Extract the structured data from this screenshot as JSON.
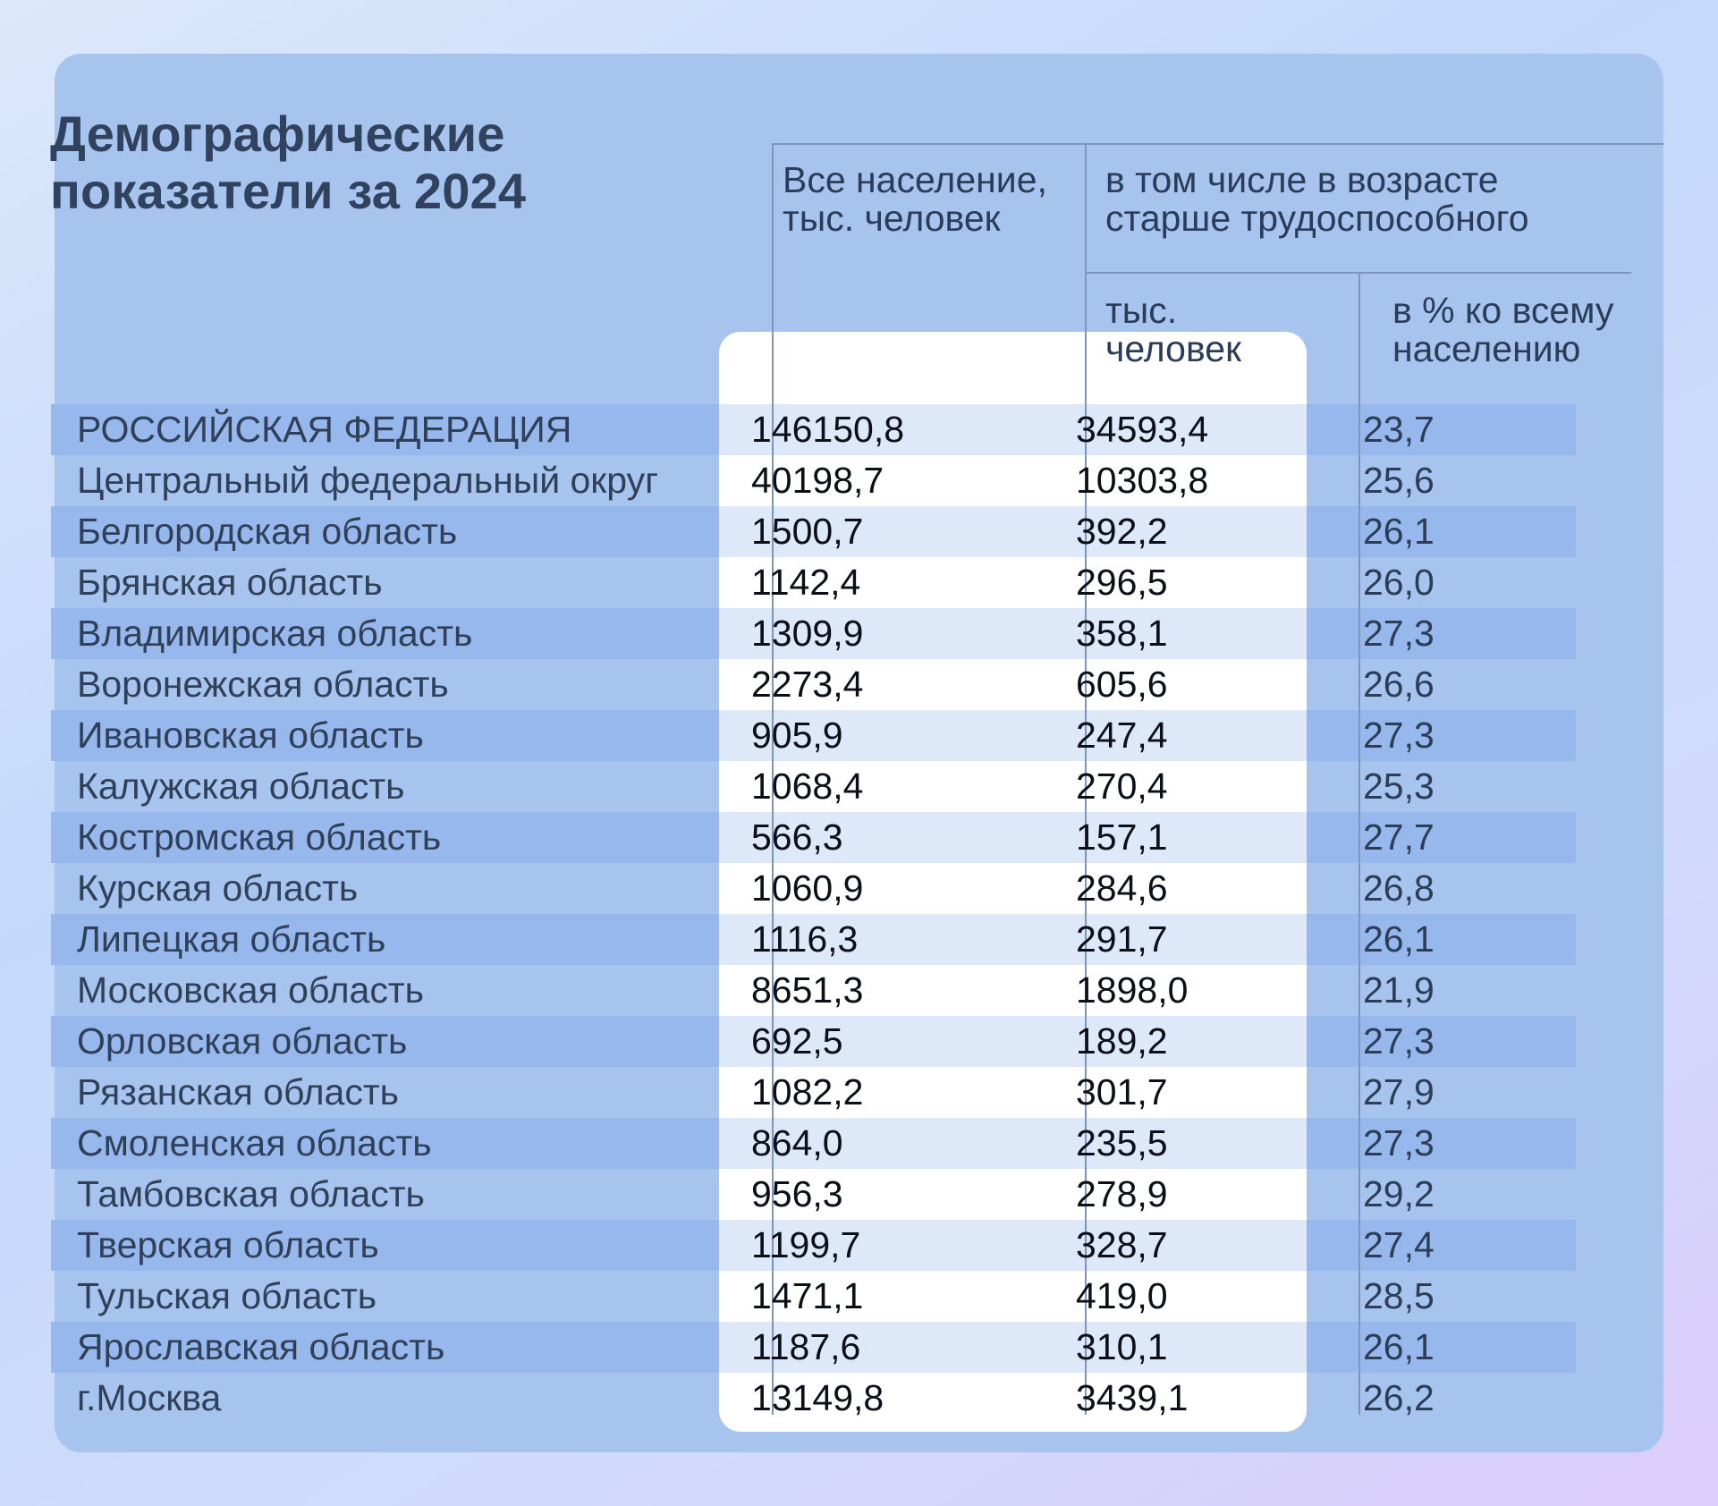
{
  "title": {
    "line1": "Демографические",
    "line2": "показатели за 2024"
  },
  "headers": {
    "total_line1": "Все население,",
    "total_line2": "тыс. человек",
    "group_line1": "в том числе в возрасте",
    "group_line2": "старше трудоспособного",
    "older_line1": "тыс.",
    "older_line2": "человек",
    "share_line1": "в % ко всему",
    "share_line2": "населению"
  },
  "chart_data": {
    "type": "table",
    "title": "Демографические показатели за 2024",
    "columns": [
      "Все население, тыс. человек",
      "в том числе в возрасте старше трудоспособного: тыс. человек",
      "в том числе в возрасте старше трудоспособного: в % ко всему населению"
    ],
    "rows": [
      {
        "region": "РОССИЙСКАЯ ФЕДЕРАЦИЯ",
        "total": "146150,8",
        "older": "34593,4",
        "share": "23,7"
      },
      {
        "region": "Центральный федеральный округ",
        "total": "40198,7",
        "older": "10303,8",
        "share": "25,6"
      },
      {
        "region": "Белгородская область",
        "total": "1500,7",
        "older": "392,2",
        "share": "26,1"
      },
      {
        "region": "Брянская область",
        "total": "1142,4",
        "older": "296,5",
        "share": "26,0"
      },
      {
        "region": "Владимирская область",
        "total": "1309,9",
        "older": "358,1",
        "share": "27,3"
      },
      {
        "region": "Воронежская область",
        "total": "2273,4",
        "older": "605,6",
        "share": "26,6"
      },
      {
        "region": "Ивановская область",
        "total": "905,9",
        "older": "247,4",
        "share": "27,3"
      },
      {
        "region": "Калужская область",
        "total": "1068,4",
        "older": "270,4",
        "share": "25,3"
      },
      {
        "region": "Костромская область",
        "total": "566,3",
        "older": "157,1",
        "share": "27,7"
      },
      {
        "region": "Курская область",
        "total": "1060,9",
        "older": "284,6",
        "share": "26,8"
      },
      {
        "region": "Липецкая область",
        "total": "1116,3",
        "older": "291,7",
        "share": "26,1"
      },
      {
        "region": "Московская область",
        "total": "8651,3",
        "older": "1898,0",
        "share": "21,9"
      },
      {
        "region": "Орловская область",
        "total": "692,5",
        "older": "189,2",
        "share": "27,3"
      },
      {
        "region": "Рязанская область",
        "total": "1082,2",
        "older": "301,7",
        "share": "27,9"
      },
      {
        "region": "Смоленская область",
        "total": "864,0",
        "older": "235,5",
        "share": "27,3"
      },
      {
        "region": "Тамбовская область",
        "total": "956,3",
        "older": "278,9",
        "share": "29,2"
      },
      {
        "region": "Тверская область",
        "total": "1199,7",
        "older": "328,7",
        "share": "27,4"
      },
      {
        "region": "Тульская область",
        "total": "1471,1",
        "older": "419,0",
        "share": "28,5"
      },
      {
        "region": "Ярославская область",
        "total": "1187,6",
        "older": "310,1",
        "share": "26,1"
      },
      {
        "region": "г.Москва",
        "total": "13149,8",
        "older": "3439,1",
        "share": "26,2"
      }
    ]
  }
}
